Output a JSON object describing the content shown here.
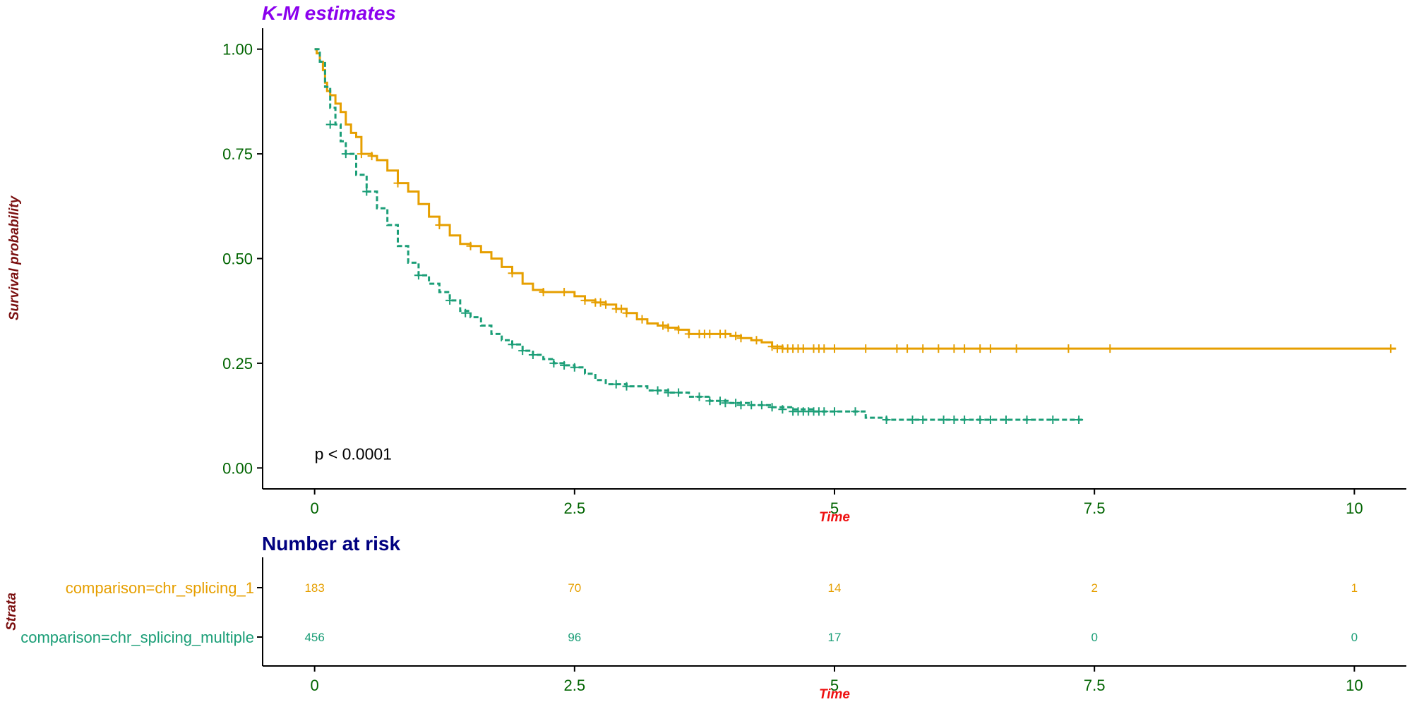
{
  "chart_data": [
    {
      "type": "line",
      "subtype": "kaplan-meier",
      "title": "K-M estimates",
      "xlabel": "Time",
      "ylabel": "Survival probability",
      "xlim": [
        -0.5,
        10.5
      ],
      "ylim": [
        -0.05,
        1.05
      ],
      "x_ticks": [
        0,
        2.5,
        5,
        7.5,
        10
      ],
      "x_tick_labels": [
        "0",
        "2.5",
        "5",
        "7.5",
        "10"
      ],
      "y_ticks": [
        0,
        0.25,
        0.5,
        0.75,
        1
      ],
      "y_tick_labels": [
        "0.00",
        "0.25",
        "0.50",
        "0.75",
        "1.00"
      ],
      "grid": false,
      "annotation": "p < 0.0001",
      "annotation_pos": [
        0,
        0.02
      ],
      "series": [
        {
          "strata": "comparison=chr_splicing_1",
          "color": "#E69F00",
          "linestyle": "solid",
          "x": [
            0,
            0.02,
            0.05,
            0.08,
            0.1,
            0.12,
            0.15,
            0.2,
            0.25,
            0.3,
            0.35,
            0.4,
            0.45,
            0.5,
            0.55,
            0.6,
            0.7,
            0.8,
            0.9,
            1.0,
            1.1,
            1.2,
            1.3,
            1.4,
            1.5,
            1.6,
            1.7,
            1.8,
            1.9,
            2.0,
            2.1,
            2.2,
            2.3,
            2.4,
            2.5,
            2.6,
            2.7,
            2.8,
            2.9,
            3.0,
            3.1,
            3.2,
            3.3,
            3.4,
            3.5,
            3.6,
            3.7,
            3.8,
            3.9,
            4.0,
            4.1,
            4.2,
            4.3,
            4.4,
            4.5,
            5.0,
            6.0,
            7.0,
            8.0,
            9.0,
            10.4
          ],
          "y": [
            1.0,
            0.99,
            0.97,
            0.95,
            0.92,
            0.9,
            0.89,
            0.87,
            0.85,
            0.82,
            0.8,
            0.79,
            0.75,
            0.75,
            0.745,
            0.735,
            0.71,
            0.68,
            0.66,
            0.63,
            0.6,
            0.58,
            0.555,
            0.535,
            0.53,
            0.515,
            0.5,
            0.48,
            0.465,
            0.44,
            0.425,
            0.42,
            0.42,
            0.42,
            0.41,
            0.4,
            0.395,
            0.39,
            0.38,
            0.37,
            0.355,
            0.345,
            0.34,
            0.335,
            0.33,
            0.32,
            0.32,
            0.32,
            0.32,
            0.315,
            0.31,
            0.305,
            0.3,
            0.29,
            0.285,
            0.285,
            0.285,
            0.285,
            0.285,
            0.285,
            0.285
          ],
          "censor_x": [
            0.45,
            0.55,
            0.8,
            1.2,
            1.5,
            1.9,
            2.2,
            2.4,
            2.6,
            2.7,
            2.75,
            2.8,
            2.9,
            2.95,
            3.0,
            3.15,
            3.35,
            3.4,
            3.5,
            3.6,
            3.7,
            3.75,
            3.8,
            3.9,
            3.95,
            4.05,
            4.1,
            4.25,
            4.4,
            4.45,
            4.5,
            4.55,
            4.6,
            4.65,
            4.7,
            4.8,
            4.85,
            4.9,
            5.0,
            5.3,
            5.6,
            5.7,
            5.85,
            6.0,
            6.15,
            6.25,
            6.4,
            6.5,
            6.75,
            7.25,
            7.65,
            10.35
          ],
          "censor_y": [
            0.75,
            0.745,
            0.68,
            0.58,
            0.53,
            0.465,
            0.42,
            0.42,
            0.4,
            0.395,
            0.395,
            0.39,
            0.38,
            0.38,
            0.37,
            0.355,
            0.34,
            0.335,
            0.33,
            0.32,
            0.32,
            0.32,
            0.32,
            0.32,
            0.32,
            0.315,
            0.31,
            0.305,
            0.29,
            0.285,
            0.285,
            0.285,
            0.285,
            0.285,
            0.285,
            0.285,
            0.285,
            0.285,
            0.285,
            0.285,
            0.285,
            0.285,
            0.285,
            0.285,
            0.285,
            0.285,
            0.285,
            0.285,
            0.285,
            0.285,
            0.285,
            0.285
          ]
        },
        {
          "strata": "comparison=chr_splicing_multiple",
          "color": "#1B9E77",
          "linestyle": "dashed",
          "x": [
            0,
            0.05,
            0.1,
            0.15,
            0.2,
            0.25,
            0.3,
            0.4,
            0.5,
            0.6,
            0.7,
            0.8,
            0.9,
            1.0,
            1.1,
            1.2,
            1.3,
            1.4,
            1.5,
            1.6,
            1.7,
            1.8,
            1.9,
            2.0,
            2.1,
            2.2,
            2.3,
            2.4,
            2.5,
            2.6,
            2.7,
            2.8,
            2.9,
            3.0,
            3.2,
            3.4,
            3.6,
            3.8,
            4.0,
            4.2,
            4.4,
            4.6,
            4.8,
            5.0,
            5.2,
            5.3,
            5.5,
            6.0,
            6.5,
            7.0,
            7.4
          ],
          "y": [
            1.0,
            0.97,
            0.91,
            0.86,
            0.82,
            0.78,
            0.75,
            0.7,
            0.66,
            0.62,
            0.58,
            0.53,
            0.49,
            0.46,
            0.44,
            0.42,
            0.4,
            0.375,
            0.36,
            0.34,
            0.32,
            0.305,
            0.295,
            0.28,
            0.27,
            0.26,
            0.25,
            0.245,
            0.24,
            0.225,
            0.21,
            0.2,
            0.2,
            0.195,
            0.185,
            0.18,
            0.17,
            0.16,
            0.155,
            0.15,
            0.145,
            0.14,
            0.135,
            0.135,
            0.135,
            0.12,
            0.115,
            0.115,
            0.115,
            0.115,
            0.115
          ],
          "censor_x": [
            0.15,
            0.3,
            0.5,
            1.0,
            1.3,
            1.45,
            1.9,
            2.0,
            2.1,
            2.3,
            2.4,
            2.5,
            2.9,
            3.0,
            3.3,
            3.4,
            3.5,
            3.7,
            3.8,
            3.9,
            3.95,
            4.05,
            4.1,
            4.2,
            4.3,
            4.4,
            4.5,
            4.6,
            4.65,
            4.7,
            4.75,
            4.8,
            4.85,
            4.9,
            5.0,
            5.2,
            5.5,
            5.75,
            5.85,
            6.05,
            6.15,
            6.25,
            6.4,
            6.5,
            6.65,
            6.85,
            7.1,
            7.35
          ],
          "censor_y": [
            0.82,
            0.75,
            0.66,
            0.46,
            0.4,
            0.37,
            0.295,
            0.28,
            0.27,
            0.25,
            0.245,
            0.24,
            0.2,
            0.195,
            0.185,
            0.18,
            0.18,
            0.17,
            0.16,
            0.16,
            0.155,
            0.155,
            0.15,
            0.15,
            0.15,
            0.145,
            0.14,
            0.135,
            0.135,
            0.135,
            0.135,
            0.135,
            0.135,
            0.135,
            0.135,
            0.135,
            0.115,
            0.115,
            0.115,
            0.115,
            0.115,
            0.115,
            0.115,
            0.115,
            0.115,
            0.115,
            0.115,
            0.115
          ]
        }
      ]
    },
    {
      "type": "table",
      "title": "Number at risk",
      "xlabel": "Time",
      "ylabel": "Strata",
      "xlim": [
        -0.5,
        10.5
      ],
      "x_ticks": [
        0,
        2.5,
        5,
        7.5,
        10
      ],
      "x_tick_labels": [
        "0",
        "2.5",
        "5",
        "7.5",
        "10"
      ],
      "rows": [
        {
          "label": "comparison=chr_splicing_1",
          "color": "#E69F00",
          "values": [
            183,
            70,
            14,
            2,
            1
          ]
        },
        {
          "label": "comparison=chr_splicing_multiple",
          "color": "#1B9E77",
          "values": [
            456,
            96,
            17,
            0,
            0
          ]
        }
      ]
    }
  ],
  "colors": {
    "title_km": "#8B00EE",
    "title_risk": "#000080",
    "axis_title_y": "#7B1010",
    "axis_title_x": "#EE1111",
    "tick_text": "#006400",
    "annotation": "#000000"
  }
}
